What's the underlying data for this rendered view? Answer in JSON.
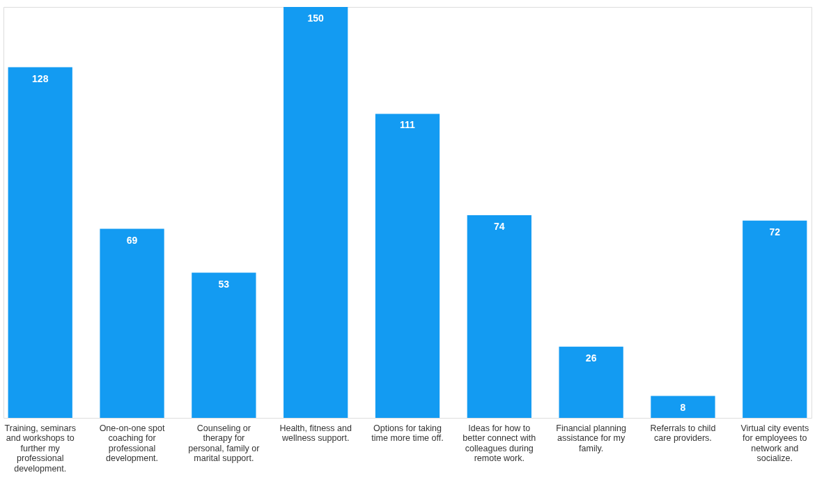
{
  "chart_data": {
    "type": "bar",
    "categories": [
      "Training, seminars and workshops to further my professional development.",
      "One-on-one spot coaching for professional development.",
      "Counseling or therapy for personal, family or marital support.",
      "Health, fitness and wellness support.",
      "Options for taking time more time off.",
      "Ideas for how to better connect with colleagues during remote work.",
      "Financial planning assistance for my family.",
      "Referrals to child care providers.",
      "Virtual city events for employees to network and socialize."
    ],
    "values": [
      128,
      69,
      53,
      150,
      111,
      74,
      26,
      8,
      72
    ],
    "color": "#139bf2",
    "ylim": [
      0,
      150
    ],
    "data_labels": true,
    "tick_labels": "x"
  }
}
